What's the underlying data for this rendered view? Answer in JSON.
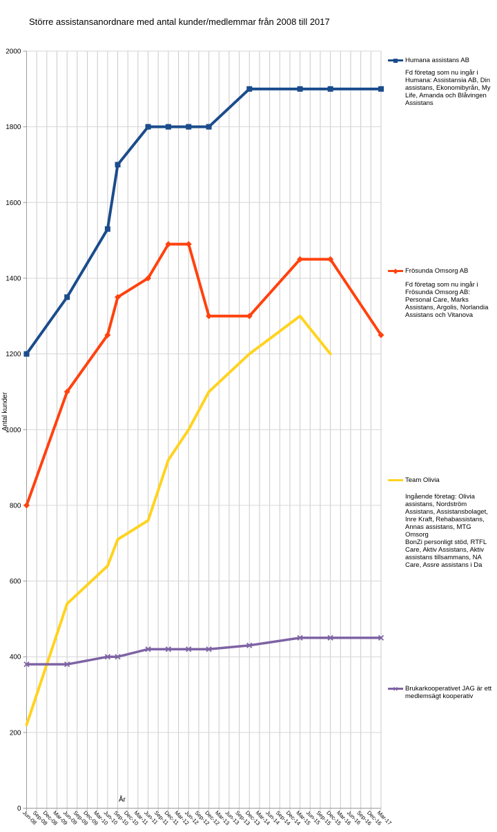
{
  "title": "Större assistansanordnare med antal kunder/medlemmar från 2008 till 2017",
  "chart_data": {
    "type": "line",
    "title": "Större assistansanordnare med antal kunder/medlemmar från 2008 till 2017",
    "xlabel": "År",
    "ylabel": "Antal kunder",
    "ylim": [
      0,
      2000
    ],
    "y_ticks": [
      0,
      200,
      400,
      600,
      800,
      1000,
      1200,
      1400,
      1600,
      1800,
      2000
    ],
    "grid": true,
    "legend_position": "right",
    "x_tick_rotation": 45,
    "categories": [
      "Jun-08",
      "Sep-08",
      "Dec-08",
      "Mar-09",
      "Jun-09",
      "Sep-09",
      "Dec-09",
      "Mar-10",
      "Jun-10",
      "Sep-10",
      "Dec-10",
      "Mar-11",
      "Jun-11",
      "Sep-11",
      "Dec-11",
      "Mar-12",
      "Jun-12",
      "Sep-12",
      "Dec-12",
      "Mar-13",
      "Jun-13",
      "Sep-13",
      "Dec-13",
      "Mar-14",
      "Jun-14",
      "Sep-14",
      "Dec-14",
      "Mar-15",
      "Jun-15",
      "Sep-15",
      "Dec-15",
      "Mar-16",
      "Jun-16",
      "Sep-16",
      "Dec-16",
      "Mar-17"
    ],
    "series": [
      {
        "name": "Humana assistans AB",
        "note": "Fd företag som nu ingår i\nHumana: Assistansia AB, Din\nassistans, Ekonomibyrån, My\nLife, Amanda och Blåvingen\nAssistans",
        "color": "#1B4C8C",
        "marker": "square",
        "points": [
          {
            "x": "Jun-08",
            "y": 1200
          },
          {
            "x": "Jun-09",
            "y": 1350
          },
          {
            "x": "Jun-10",
            "y": 1530
          },
          {
            "x": "Sep-10",
            "y": 1700
          },
          {
            "x": "Jun-11",
            "y": 1800
          },
          {
            "x": "Dec-11",
            "y": 1800
          },
          {
            "x": "Jun-12",
            "y": 1800
          },
          {
            "x": "Dec-12",
            "y": 1800
          },
          {
            "x": "Dec-13",
            "y": 1900
          },
          {
            "x": "Mar-15",
            "y": 1900
          },
          {
            "x": "Dec-15",
            "y": 1900
          },
          {
            "x": "Mar-17",
            "y": 1900
          }
        ]
      },
      {
        "name": "Frösunda Omsorg AB",
        "note": "Fd företag som nu ingår i\nFrösunda Omsorg AB:\nPersonal Care, Marks\nAssistans, Argolis, Norlandia\nAssistans och Vitanova",
        "color": "#FF420E",
        "marker": "diamond",
        "points": [
          {
            "x": "Jun-08",
            "y": 800
          },
          {
            "x": "Jun-09",
            "y": 1100
          },
          {
            "x": "Jun-10",
            "y": 1250
          },
          {
            "x": "Sep-10",
            "y": 1350
          },
          {
            "x": "Jun-11",
            "y": 1400
          },
          {
            "x": "Dec-11",
            "y": 1490
          },
          {
            "x": "Jun-12",
            "y": 1490
          },
          {
            "x": "Dec-12",
            "y": 1300
          },
          {
            "x": "Dec-13",
            "y": 1300
          },
          {
            "x": "Mar-15",
            "y": 1450
          },
          {
            "x": "Dec-15",
            "y": 1450
          },
          {
            "x": "Mar-17",
            "y": 1250
          }
        ]
      },
      {
        "name": "Team Olivia",
        "note": "Ingående företag: Olivia\nassistans, Nordström\nAssistans, Assistansbolaget,\nInre Kraft, Rehabassistans,\nAnnas assistans, MTG\nOmsorg\nBonZi personligt stöd, RTFL\nCare, Aktiv Assistans, Aktiv\nassistans tillsammans, NA\nCare, Assre assistans i Da",
        "color": "#FFD320",
        "marker": "none",
        "points": [
          {
            "x": "Jun-08",
            "y": 220
          },
          {
            "x": "Jun-09",
            "y": 540
          },
          {
            "x": "Jun-10",
            "y": 640
          },
          {
            "x": "Sep-10",
            "y": 710
          },
          {
            "x": "Jun-11",
            "y": 760
          },
          {
            "x": "Dec-11",
            "y": 920
          },
          {
            "x": "Jun-12",
            "y": 1000
          },
          {
            "x": "Dec-12",
            "y": 1100
          },
          {
            "x": "Dec-13",
            "y": 1200
          },
          {
            "x": "Mar-15",
            "y": 1300
          },
          {
            "x": "Dec-15",
            "y": 1200
          }
        ]
      },
      {
        "name": "Brukarkooperativet JAG är ett medlemsägt kooperativ",
        "note": "",
        "color": "#7E63A4",
        "marker": "x",
        "points": [
          {
            "x": "Jun-08",
            "y": 380
          },
          {
            "x": "Jun-09",
            "y": 380
          },
          {
            "x": "Jun-10",
            "y": 400
          },
          {
            "x": "Sep-10",
            "y": 400
          },
          {
            "x": "Jun-11",
            "y": 420
          },
          {
            "x": "Dec-11",
            "y": 420
          },
          {
            "x": "Jun-12",
            "y": 420
          },
          {
            "x": "Dec-12",
            "y": 420
          },
          {
            "x": "Dec-13",
            "y": 430
          },
          {
            "x": "Mar-15",
            "y": 450
          },
          {
            "x": "Dec-15",
            "y": 450
          },
          {
            "x": "Mar-17",
            "y": 450
          }
        ]
      }
    ]
  }
}
